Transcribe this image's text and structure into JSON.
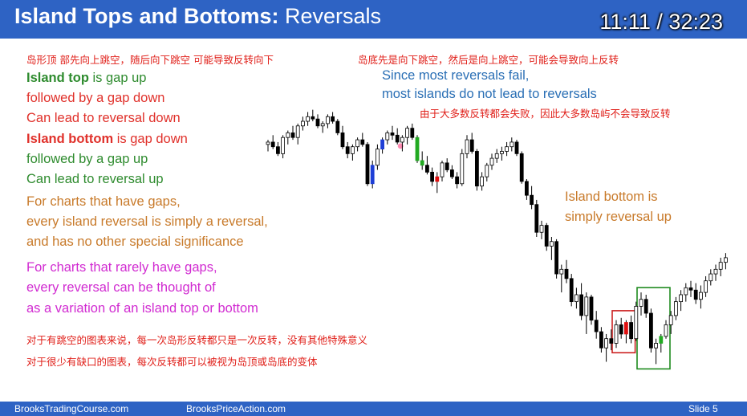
{
  "header": {
    "title_bold": "Island Tops and Bottoms:",
    "title_rest": " Reversals",
    "timer": "11:11 / 32:23",
    "bg_color": "#2e63c4"
  },
  "notes_cn": {
    "top_left": "岛形顶 部先向上跳空，随后向下跳空 可能导致反转向下",
    "top_right": "岛底先是向下跳空，然后是向上跳空，可能会导致向上反转",
    "fail_note": "由于大多数反转都会失败，因此大多数岛屿不会导致反转",
    "bottom_1": "对于有跳空的图表来说，每一次岛形反转都只是一次反转，没有其他特殊意义",
    "bottom_2": "对于很少有缺口的图表，每次反转都可以被视为岛顶或岛底的变体"
  },
  "island_top": {
    "bold": "Island top",
    "rest": " is gap up",
    "line2": "followed by a gap down",
    "line3": "Can lead to reversal down"
  },
  "island_bottom": {
    "bold": "Island bottom",
    "rest": " is gap down",
    "line2": "followed by a gap up",
    "line3": "Can lead to reversal up"
  },
  "gaps_note": {
    "line1": "For charts that have gaps,",
    "line2": "every island reversal is simply a reversal,",
    "line3": "and has no other special significance"
  },
  "rare_gaps_note": {
    "line1": "For charts that rarely have gaps,",
    "line2": "every reversal can be thought of",
    "line3": "as a variation of an island top or bottom"
  },
  "fail_en": {
    "line1": "Since most reversals fail,",
    "line2": "most islands do not lead to reversals"
  },
  "chart_label": {
    "line1": "Island bottom is",
    "line2": "simply reversal up"
  },
  "footer": {
    "left": "BrooksTradingCourse.com",
    "center": "BrooksPriceAction.com",
    "right": "Slide  5"
  },
  "colors": {
    "bull": "#ffffff",
    "bear": "#000000",
    "highlight_blue": "#1f3fd6",
    "highlight_green": "#22aa22",
    "highlight_red": "#e01010",
    "box_red": "#cc2222",
    "box_green": "#1e8a1e"
  },
  "chart_data": {
    "type": "candlestick",
    "bars": [
      [
        62,
        64,
        59,
        63
      ],
      [
        63,
        66,
        60,
        61
      ],
      [
        61,
        63,
        57,
        58
      ],
      [
        58,
        66,
        56,
        65
      ],
      [
        65,
        68,
        62,
        67
      ],
      [
        67,
        70,
        64,
        65
      ],
      [
        65,
        71,
        62,
        70
      ],
      [
        70,
        74,
        68,
        72
      ],
      [
        72,
        76,
        70,
        74
      ],
      [
        74,
        77,
        72,
        73
      ],
      [
        73,
        75,
        69,
        70
      ],
      [
        70,
        72,
        67,
        71
      ],
      [
        71,
        75,
        69,
        74
      ],
      [
        74,
        76,
        71,
        72
      ],
      [
        72,
        73,
        66,
        67
      ],
      [
        67,
        70,
        60,
        61
      ],
      [
        61,
        63,
        56,
        58
      ],
      [
        58,
        62,
        55,
        61
      ],
      [
        61,
        65,
        59,
        64
      ],
      [
        64,
        67,
        61,
        62
      ],
      [
        62,
        63,
        44,
        45
      ],
      [
        45,
        55,
        43,
        53
      ],
      [
        53,
        62,
        51,
        60
      ],
      [
        60,
        65,
        58,
        64
      ],
      [
        64,
        68,
        62,
        67
      ],
      [
        67,
        70,
        64,
        66
      ],
      [
        66,
        69,
        62,
        63
      ],
      [
        63,
        66,
        59,
        65
      ],
      [
        65,
        70,
        62,
        69
      ],
      [
        69,
        71,
        64,
        65
      ],
      [
        65,
        66,
        54,
        55
      ],
      [
        55,
        59,
        51,
        53
      ],
      [
        53,
        57,
        49,
        50
      ],
      [
        50,
        52,
        44,
        46
      ],
      [
        46,
        50,
        41,
        48
      ],
      [
        48,
        55,
        46,
        54
      ],
      [
        54,
        56,
        50,
        51
      ],
      [
        51,
        53,
        47,
        48
      ],
      [
        48,
        50,
        43,
        45
      ],
      [
        45,
        60,
        44,
        58
      ],
      [
        58,
        66,
        56,
        64
      ],
      [
        64,
        67,
        58,
        59
      ],
      [
        59,
        60,
        42,
        44
      ],
      [
        44,
        50,
        42,
        48
      ],
      [
        48,
        54,
        46,
        53
      ],
      [
        53,
        58,
        51,
        56
      ],
      [
        56,
        60,
        54,
        58
      ],
      [
        58,
        61,
        55,
        59
      ],
      [
        59,
        63,
        57,
        61
      ],
      [
        61,
        65,
        59,
        63
      ],
      [
        63,
        64,
        57,
        58
      ],
      [
        58,
        59,
        45,
        46
      ],
      [
        46,
        47,
        38,
        40
      ],
      [
        40,
        44,
        34,
        36
      ],
      [
        36,
        38,
        22,
        24
      ],
      [
        24,
        29,
        21,
        27
      ],
      [
        27,
        28,
        16,
        18
      ],
      [
        18,
        22,
        12,
        20
      ],
      [
        20,
        21,
        4,
        6
      ],
      [
        6,
        10,
        -2,
        8
      ],
      [
        8,
        12,
        2,
        4
      ],
      [
        4,
        6,
        -8,
        -6
      ],
      [
        -6,
        0,
        -9,
        -3
      ],
      [
        -3,
        2,
        -14,
        -12
      ],
      [
        -12,
        -2,
        -20,
        -4
      ],
      [
        -4,
        -3,
        -16,
        -14
      ],
      [
        -14,
        -10,
        -22,
        -19
      ],
      [
        -19,
        -17,
        -28,
        -26
      ],
      [
        -26,
        -20,
        -32,
        -22
      ],
      [
        -22,
        -18,
        -27,
        -24
      ],
      [
        -24,
        -14,
        -26,
        -16
      ],
      [
        -16,
        -13,
        -22,
        -20
      ],
      [
        -20,
        -14,
        -24,
        -15
      ],
      [
        -15,
        -12,
        -24,
        -22
      ],
      [
        -22,
        -6,
        -23,
        -8
      ],
      [
        -8,
        -2,
        -12,
        -5
      ],
      [
        -5,
        -3,
        -13,
        -11
      ],
      [
        -11,
        -9,
        -28,
        -26
      ],
      [
        -26,
        -22,
        -33,
        -24
      ],
      [
        -24,
        -20,
        -28,
        -21
      ],
      [
        -21,
        -14,
        -22,
        -16
      ],
      [
        -16,
        -10,
        -20,
        -12
      ],
      [
        -12,
        -4,
        -14,
        -6
      ],
      [
        -6,
        -1,
        -10,
        -3
      ],
      [
        -3,
        2,
        -6,
        0
      ],
      [
        0,
        3,
        -4,
        -1
      ],
      [
        -1,
        2,
        -7,
        -5
      ],
      [
        -5,
        1,
        -9,
        -2
      ],
      [
        -2,
        5,
        -4,
        3
      ],
      [
        3,
        8,
        1,
        6
      ],
      [
        6,
        10,
        3,
        8
      ],
      [
        8,
        13,
        5,
        11
      ],
      [
        11,
        15,
        8,
        13
      ]
    ],
    "highlights": [
      {
        "index": 21,
        "color": "blue"
      },
      {
        "index": 23,
        "color": "blue"
      },
      {
        "index": 26,
        "color": "marker"
      },
      {
        "index": 30,
        "color": "green"
      },
      {
        "index": 31,
        "color": "green"
      },
      {
        "index": 34,
        "color": "red"
      },
      {
        "index": 72,
        "color": "red"
      },
      {
        "index": 79,
        "color": "green"
      }
    ],
    "boxes": [
      {
        "from": 70,
        "to": 73,
        "color": "red"
      },
      {
        "from": 75,
        "to": 80,
        "color": "green"
      }
    ],
    "ylim": [
      -36,
      80
    ]
  }
}
